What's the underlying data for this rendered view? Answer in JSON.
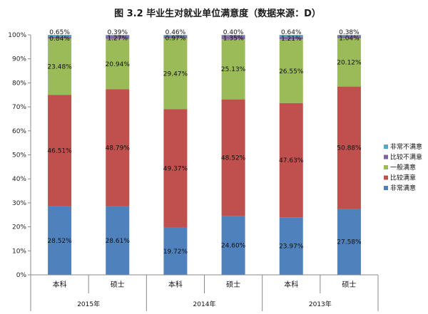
{
  "chart_data": {
    "type": "bar",
    "stacked": true,
    "title": "图 3.2  毕业生对就业单位满意度（数据来源：D）",
    "ylim": [
      0,
      100
    ],
    "y_ticks": [
      "0%",
      "10%",
      "20%",
      "30%",
      "40%",
      "50%",
      "60%",
      "70%",
      "80%",
      "90%",
      "100%"
    ],
    "categories": [
      "本科",
      "硕士",
      "本科",
      "硕士",
      "本科",
      "硕士"
    ],
    "groups": [
      {
        "label": "2015年",
        "categories": [
          "本科",
          "硕士"
        ]
      },
      {
        "label": "2014年",
        "categories": [
          "本科",
          "硕士"
        ]
      },
      {
        "label": "2013年",
        "categories": [
          "本科",
          "硕士"
        ]
      }
    ],
    "series": [
      {
        "name": "非常满意",
        "color": "#4F81BD",
        "values": [
          28.52,
          28.61,
          19.72,
          24.6,
          23.97,
          27.58
        ],
        "labels": [
          "28.52%",
          "28.61%",
          "19.72%",
          "24.60%",
          "23.97%",
          "27.58%"
        ]
      },
      {
        "name": "比较满意",
        "color": "#C0504D",
        "values": [
          46.51,
          48.79,
          49.37,
          48.52,
          47.63,
          50.88
        ],
        "labels": [
          "46.51%",
          "48.79%",
          "49.37%",
          "48.52%",
          "47.63%",
          "50.88%"
        ]
      },
      {
        "name": "一般满意",
        "color": "#9BBB59",
        "values": [
          23.48,
          20.94,
          29.47,
          25.13,
          26.55,
          20.12
        ],
        "labels": [
          "23.48%",
          "20.94%",
          "29.47%",
          "25.13%",
          "26.55%",
          "20.12%"
        ]
      },
      {
        "name": "比较不满意",
        "color": "#8064A2",
        "values": [
          0.84,
          1.27,
          0.97,
          1.35,
          1.21,
          1.04
        ],
        "labels": [
          "0.84%",
          "1.27%",
          "0.97%",
          "1.35%",
          "1.21%",
          "1.04%"
        ]
      },
      {
        "name": "非常不满意",
        "color": "#4BACC6",
        "values": [
          0.65,
          0.39,
          0.46,
          0.4,
          0.64,
          0.38
        ],
        "labels": [
          "0.65%",
          "0.39%",
          "0.46%",
          "0.40%",
          "0.64%",
          "0.38%"
        ]
      }
    ],
    "legend_position": "right",
    "legend_order": [
      "非常不满意",
      "比较不满意",
      "一般满意",
      "比较满意",
      "非常满意"
    ],
    "grid": false
  }
}
